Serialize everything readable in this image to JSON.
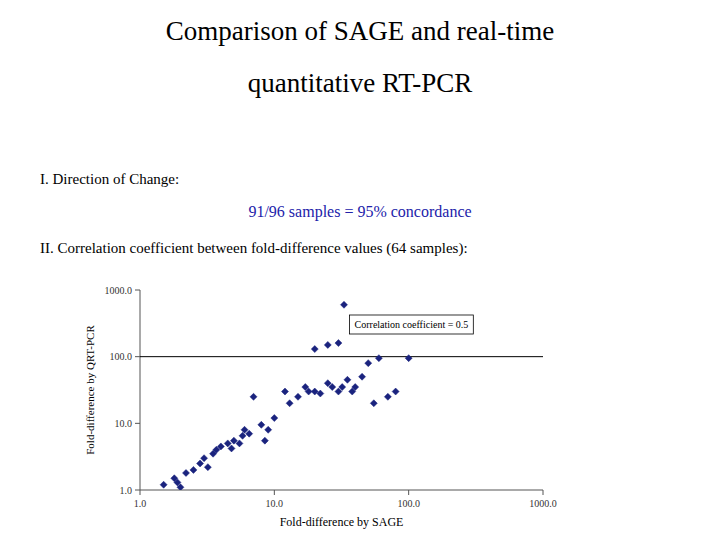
{
  "chart_data": {
    "type": "scatter",
    "title": "Comparison of SAGE and real-time\nquantitative RT-PCR",
    "annotations": [
      {
        "text": "I. Direction of Change:"
      },
      {
        "text": "91/96 samples = 95% concordance",
        "color": "#2222aa"
      },
      {
        "text": "II. Correlation coefficient between fold-difference values (64 samples):"
      },
      {
        "text": "Correlation coefficient = 0.5"
      }
    ],
    "x_label": "Fold-difference by SAGE",
    "y_label": "Fold-difference by QRT-PCR",
    "color": "#1a237e",
    "marker": "diamond",
    "hline": 100.0,
    "x": [
      1.5,
      1.8,
      1.9,
      2.0,
      2.2,
      2.5,
      2.8,
      3.0,
      3.2,
      3.5,
      3.7,
      4.0,
      4.5,
      4.8,
      5.0,
      5.5,
      5.8,
      6.0,
      6.5,
      7.0,
      8.0,
      8.5,
      9.0,
      10.0,
      12.0,
      13.0,
      15.0,
      17.0,
      18.0,
      20.0,
      22.0,
      25.0,
      27.0,
      30.0,
      32.0,
      35.0,
      38.0,
      40.0,
      45.0,
      50.0,
      55.0,
      60.0,
      70.0,
      80.0,
      100.0,
      30.0,
      33.0,
      20.0,
      25.0
    ],
    "values": [
      1.2,
      1.5,
      1.3,
      1.1,
      1.8,
      2.0,
      2.5,
      3.0,
      2.2,
      3.5,
      4.0,
      4.5,
      5.0,
      4.2,
      5.5,
      5.0,
      6.5,
      8.0,
      7.0,
      25.0,
      9.5,
      5.5,
      8.0,
      12.0,
      30.0,
      20.0,
      25.0,
      35.0,
      30.0,
      30.0,
      28.0,
      40.0,
      35.0,
      30.0,
      35.0,
      45.0,
      30.0,
      35.0,
      50.0,
      80.0,
      20.0,
      95.0,
      25.0,
      30.0,
      95.0,
      160.0,
      600.0,
      130.0,
      150.0
    ],
    "log": true,
    "grid": false,
    "xlim": [
      1.0,
      1000.0
    ],
    "ylim": [
      1.0,
      1000.0
    ],
    "xticks": [
      {
        "value": 1.0,
        "label": "1.0"
      },
      {
        "value": 10.0,
        "label": "10.0"
      },
      {
        "value": 100.0,
        "label": "100.0"
      },
      {
        "value": 1000.0,
        "label": "1000.0"
      }
    ],
    "yticks": [
      {
        "value": 1.0,
        "label": "1.0"
      },
      {
        "value": 10.0,
        "label": "10.0"
      },
      {
        "value": 100.0,
        "label": "100.0"
      },
      {
        "value": 1000.0,
        "label": "1000.0"
      }
    ]
  }
}
